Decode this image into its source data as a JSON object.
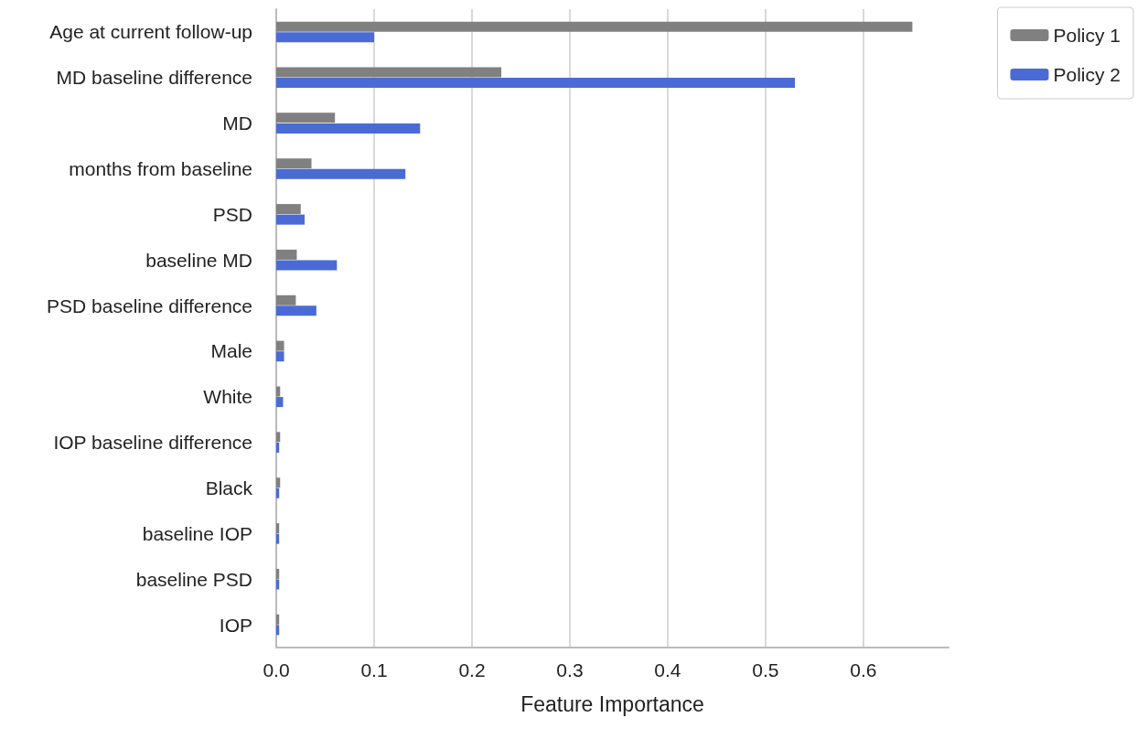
{
  "chart_data": {
    "type": "bar",
    "orientation": "horizontal",
    "xlabel": "Feature Importance",
    "categories": [
      "Age at current follow-up",
      "MD baseline difference",
      "MD",
      "months from baseline",
      "PSD",
      "baseline MD",
      "PSD baseline difference",
      "Male",
      "White",
      "IOP baseline difference",
      "Black",
      "baseline IOP",
      "baseline PSD",
      "IOP"
    ],
    "series": [
      {
        "name": "Policy 1",
        "color": "#808080",
        "values": [
          0.65,
          0.23,
          0.06,
          0.036,
          0.025,
          0.021,
          0.02,
          0.008,
          0.004,
          0.004,
          0.004,
          0.003,
          0.003,
          0.003
        ]
      },
      {
        "name": "Policy 2",
        "color": "#4a6bd6",
        "values": [
          0.1,
          0.53,
          0.147,
          0.132,
          0.029,
          0.062,
          0.041,
          0.008,
          0.007,
          0.003,
          0.003,
          0.003,
          0.003,
          0.003
        ]
      }
    ],
    "xlim": [
      0,
      0.687
    ],
    "xticks": [
      {
        "value": 0,
        "label": "0.0"
      },
      0.1,
      0.2,
      0.3,
      0.4,
      0.5,
      0.6
    ],
    "grid": "x",
    "legend": "top right"
  }
}
